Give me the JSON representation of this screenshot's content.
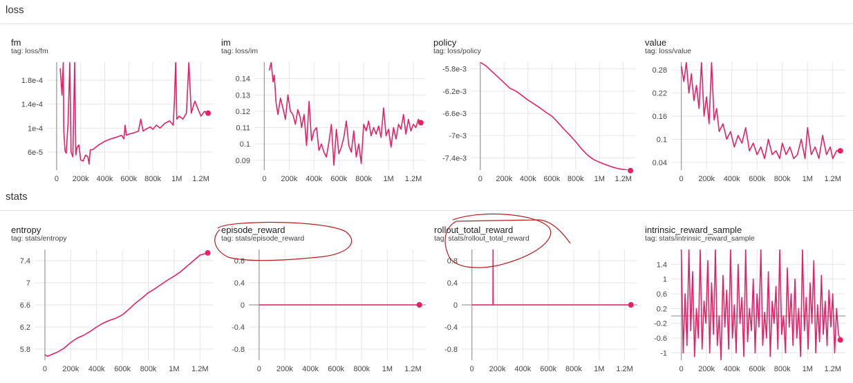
{
  "sections": [
    {
      "title": "loss"
    },
    {
      "title": "stats"
    }
  ],
  "theme": {
    "line_color": "#e91e63",
    "grid_color": "#e6e6e6",
    "axis_color": "#9e9e9e",
    "annotation_color": "#b71c1c"
  },
  "chart_data": [
    {
      "type": "line",
      "title": "fm",
      "tag": "tag: loss/fm",
      "xlim": [
        -80000,
        1300000
      ],
      "ylim": [
        3e-05,
        0.00021
      ],
      "x_ticks": [
        0,
        200000,
        400000,
        600000,
        800000,
        1000000,
        1200000
      ],
      "x_tick_labels": [
        "0",
        "200k",
        "400k",
        "600k",
        "800k",
        "1M",
        "1.2M"
      ],
      "y_ticks": [
        6e-05,
        0.0001,
        0.00014,
        0.00018
      ],
      "y_tick_labels": [
        "6e-5",
        "1e-4",
        "1.4e-4",
        "1.8e-4"
      ],
      "x": [
        30000,
        45000,
        55000,
        60000,
        70000,
        80000,
        95000,
        110000,
        120000,
        135000,
        150000,
        160000,
        170000,
        185000,
        200000,
        220000,
        240000,
        260000,
        270000,
        280000,
        300000,
        350000,
        400000,
        450000,
        500000,
        540000,
        560000,
        570000,
        580000,
        600000,
        640000,
        680000,
        700000,
        720000,
        740000,
        760000,
        780000,
        800000,
        830000,
        860000,
        900000,
        940000,
        970000,
        980000,
        990000,
        1000000,
        1020000,
        1050000,
        1080000,
        1100000,
        1120000,
        1150000,
        1180000,
        1200000,
        1230000,
        1260000
      ],
      "values": [
        0.0002,
        0.000155,
        0.00021,
        9.5e-05,
        6.2e-05,
        5.8e-05,
        0.000108,
        0.00021,
        6e-05,
        5.2e-05,
        0.00021,
        5.5e-05,
        6.8e-05,
        7.2e-05,
        4.7e-05,
        4.5e-05,
        5.5e-05,
        5.2e-05,
        4e-05,
        6.4e-05,
        6.4e-05,
        7.2e-05,
        7.8e-05,
        8.2e-05,
        8.5e-05,
        8.8e-05,
        8.2e-05,
        0.000105,
        8.8e-05,
        9e-05,
        9.2e-05,
        9.5e-05,
        0.000115,
        9.5e-05,
        9.8e-05,
        0.0001,
        0.000102,
        9.8e-05,
        0.000105,
        0.0001,
        0.000108,
        0.000112,
        0.000105,
        0.000145,
        0.00021,
        0.000115,
        0.00012,
        0.000115,
        0.000125,
        0.00021,
        0.000125,
        0.000145,
        0.00013,
        0.00012,
        0.000128,
        0.000125
      ]
    },
    {
      "type": "line",
      "title": "im",
      "tag": "tag: loss/im",
      "xlim": [
        -80000,
        1300000
      ],
      "ylim": [
        0.084,
        0.15
      ],
      "x_ticks": [
        0,
        200000,
        400000,
        600000,
        800000,
        1000000,
        1200000
      ],
      "x_tick_labels": [
        "0",
        "200k",
        "400k",
        "600k",
        "800k",
        "1M",
        "1.2M"
      ],
      "y_ticks": [
        0.09,
        0.1,
        0.11,
        0.12,
        0.13,
        0.14
      ],
      "y_tick_labels": [
        "0.09",
        "0.1",
        "0.11",
        "0.12",
        "0.13",
        "0.14"
      ],
      "x": [
        40000,
        55000,
        70000,
        80000,
        95000,
        110000,
        130000,
        150000,
        170000,
        190000,
        210000,
        230000,
        250000,
        270000,
        290000,
        300000,
        320000,
        340000,
        360000,
        380000,
        400000,
        420000,
        440000,
        460000,
        480000,
        500000,
        520000,
        540000,
        560000,
        580000,
        600000,
        620000,
        640000,
        660000,
        680000,
        700000,
        720000,
        740000,
        760000,
        780000,
        800000,
        820000,
        840000,
        860000,
        880000,
        900000,
        920000,
        940000,
        960000,
        980000,
        1000000,
        1020000,
        1040000,
        1060000,
        1080000,
        1100000,
        1120000,
        1140000,
        1160000,
        1180000,
        1200000,
        1220000,
        1240000,
        1260000
      ],
      "values": [
        0.145,
        0.15,
        0.138,
        0.142,
        0.125,
        0.118,
        0.128,
        0.122,
        0.115,
        0.13,
        0.12,
        0.118,
        0.112,
        0.121,
        0.116,
        0.11,
        0.118,
        0.099,
        0.126,
        0.102,
        0.108,
        0.11,
        0.096,
        0.1,
        0.095,
        0.092,
        0.101,
        0.112,
        0.087,
        0.109,
        0.094,
        0.098,
        0.104,
        0.114,
        0.099,
        0.095,
        0.108,
        0.092,
        0.1,
        0.088,
        0.112,
        0.108,
        0.114,
        0.105,
        0.11,
        0.106,
        0.111,
        0.104,
        0.122,
        0.105,
        0.109,
        0.098,
        0.11,
        0.103,
        0.112,
        0.109,
        0.118,
        0.106,
        0.115,
        0.108,
        0.112,
        0.11,
        0.115,
        0.113
      ]
    },
    {
      "type": "line",
      "title": "policy",
      "tag": "tag: loss/policy",
      "xlim": [
        -80000,
        1300000
      ],
      "ylim": [
        -0.00762,
        -0.00568
      ],
      "x_ticks": [
        0,
        200000,
        400000,
        600000,
        800000,
        1000000,
        1200000
      ],
      "x_tick_labels": [
        "0",
        "200k",
        "400k",
        "600k",
        "800k",
        "1M",
        "1.2M"
      ],
      "y_ticks": [
        -0.0058,
        -0.0062,
        -0.0066,
        -0.007,
        -0.0074
      ],
      "y_tick_labels": [
        "-5.8e-3",
        "-6.2e-3",
        "-6.6e-3",
        "-7e-3",
        "-7.4e-3"
      ],
      "x": [
        0,
        50000,
        100000,
        150000,
        200000,
        250000,
        300000,
        350000,
        400000,
        450000,
        500000,
        550000,
        600000,
        650000,
        700000,
        750000,
        800000,
        850000,
        900000,
        950000,
        1000000,
        1050000,
        1100000,
        1150000,
        1200000,
        1260000
      ],
      "values": [
        -0.00568,
        -0.00575,
        -0.00585,
        -0.00595,
        -0.00605,
        -0.00615,
        -0.0062,
        -0.00628,
        -0.00636,
        -0.00643,
        -0.0065,
        -0.00658,
        -0.00665,
        -0.00676,
        -0.00688,
        -0.00699,
        -0.00711,
        -0.00724,
        -0.00735,
        -0.00743,
        -0.00748,
        -0.00752,
        -0.00756,
        -0.00759,
        -0.00761,
        -0.00763
      ]
    },
    {
      "type": "line",
      "title": "value",
      "tag": "tag: loss/value",
      "xlim": [
        -80000,
        1300000
      ],
      "ylim": [
        0.02,
        0.3
      ],
      "x_ticks": [
        0,
        200000,
        400000,
        600000,
        800000,
        1000000,
        1200000
      ],
      "x_tick_labels": [
        "0",
        "200k",
        "400k",
        "600k",
        "800k",
        "1M",
        "1.2M"
      ],
      "y_ticks": [
        0.04,
        0.1,
        0.16,
        0.22,
        0.28
      ],
      "y_tick_labels": [
        "0.04",
        "0.1",
        "0.16",
        "0.22",
        "0.28"
      ],
      "x": [
        0,
        20000,
        40000,
        60000,
        80000,
        100000,
        120000,
        140000,
        160000,
        180000,
        200000,
        220000,
        240000,
        260000,
        280000,
        300000,
        330000,
        360000,
        390000,
        420000,
        450000,
        480000,
        510000,
        540000,
        570000,
        600000,
        630000,
        660000,
        690000,
        720000,
        750000,
        780000,
        800000,
        830000,
        860000,
        890000,
        920000,
        950000,
        980000,
        1000000,
        1030000,
        1060000,
        1090000,
        1120000,
        1150000,
        1180000,
        1200000,
        1230000,
        1260000
      ],
      "values": [
        0.29,
        0.25,
        0.3,
        0.22,
        0.27,
        0.2,
        0.24,
        0.18,
        0.3,
        0.16,
        0.21,
        0.14,
        0.3,
        0.15,
        0.18,
        0.12,
        0.14,
        0.1,
        0.12,
        0.08,
        0.11,
        0.09,
        0.13,
        0.07,
        0.09,
        0.06,
        0.08,
        0.05,
        0.1,
        0.06,
        0.07,
        0.05,
        0.09,
        0.06,
        0.08,
        0.05,
        0.06,
        0.1,
        0.05,
        0.13,
        0.06,
        0.08,
        0.05,
        0.11,
        0.06,
        0.08,
        0.05,
        0.07,
        0.07
      ]
    },
    {
      "type": "line",
      "title": "entropy",
      "tag": "tag: stats/entropy",
      "xlim": [
        -80000,
        1300000
      ],
      "ylim": [
        5.6,
        7.6
      ],
      "x_ticks": [
        0,
        200000,
        400000,
        600000,
        800000,
        1000000,
        1200000
      ],
      "x_tick_labels": [
        "0",
        "200k",
        "400k",
        "600k",
        "800k",
        "1M",
        "1.2M"
      ],
      "y_ticks": [
        5.8,
        6.2,
        6.6,
        7,
        7.4
      ],
      "y_tick_labels": [
        "5.8",
        "6.2",
        "6.6",
        "7",
        "7.4"
      ],
      "x": [
        0,
        20000,
        50000,
        100000,
        150000,
        200000,
        250000,
        300000,
        350000,
        400000,
        450000,
        500000,
        550000,
        600000,
        650000,
        700000,
        750000,
        800000,
        850000,
        900000,
        950000,
        1000000,
        1050000,
        1100000,
        1150000,
        1200000,
        1260000
      ],
      "values": [
        5.7,
        5.67,
        5.7,
        5.75,
        5.82,
        5.92,
        6.0,
        6.05,
        6.12,
        6.2,
        6.27,
        6.32,
        6.36,
        6.42,
        6.52,
        6.63,
        6.72,
        6.82,
        6.89,
        6.97,
        7.05,
        7.12,
        7.2,
        7.3,
        7.4,
        7.5,
        7.54
      ]
    },
    {
      "type": "line",
      "title": "episode_reward",
      "tag": "tag: stats/episode_reward",
      "xlim": [
        -80000,
        1300000
      ],
      "ylim": [
        -1.0,
        1.0
      ],
      "x_ticks": [
        0,
        200000,
        400000,
        600000,
        800000,
        1000000,
        1200000
      ],
      "x_tick_labels": [
        "0",
        "200k",
        "400k",
        "600k",
        "800k",
        "1M",
        "1.2M"
      ],
      "y_ticks": [
        -0.8,
        -0.4,
        0,
        0.4,
        0.8
      ],
      "y_tick_labels": [
        "-0.8",
        "-0.4",
        "0",
        "0.4",
        "0.8"
      ],
      "x": [
        0,
        1250000
      ],
      "values": [
        0,
        0
      ]
    },
    {
      "type": "line",
      "title": "rollout_total_reward",
      "tag": "tag: stats/rollout_total_reward",
      "xlim": [
        -80000,
        1300000
      ],
      "ylim": [
        -1.0,
        1.0
      ],
      "x_ticks": [
        0,
        200000,
        400000,
        600000,
        800000,
        1000000,
        1200000
      ],
      "x_tick_labels": [
        "0",
        "200k",
        "400k",
        "600k",
        "800k",
        "1M",
        "1.2M"
      ],
      "y_ticks": [
        -0.8,
        -0.4,
        0,
        0.4,
        0.8
      ],
      "y_tick_labels": [
        "-0.8",
        "-0.4",
        "0",
        "0.4",
        "0.8"
      ],
      "x": [
        0,
        165000,
        166000,
        168000,
        1250000
      ],
      "values": [
        0,
        0,
        1.0,
        0,
        0
      ]
    },
    {
      "type": "line",
      "title": "intrinsic_reward_sample",
      "tag": "tag: stats/intrinsic_reward_sample",
      "xlim": [
        -80000,
        1300000
      ],
      "ylim": [
        -1.2,
        1.8
      ],
      "x_ticks": [
        0,
        200000,
        400000,
        600000,
        800000,
        1000000,
        1200000
      ],
      "x_tick_labels": [
        "0",
        "200k",
        "400k",
        "600k",
        "800k",
        "1M",
        "1.2M"
      ],
      "y_ticks": [
        -1,
        -0.6,
        -0.2,
        0.2,
        0.6,
        1,
        1.4
      ],
      "y_tick_labels": [
        "-1",
        "-0.6",
        "-0.2",
        "0.2",
        "0.6",
        "1",
        "1.4"
      ],
      "x": [
        0,
        15000,
        30000,
        45000,
        60000,
        75000,
        90000,
        105000,
        120000,
        135000,
        150000,
        165000,
        180000,
        195000,
        210000,
        225000,
        240000,
        255000,
        270000,
        285000,
        300000,
        315000,
        330000,
        345000,
        360000,
        375000,
        390000,
        405000,
        420000,
        435000,
        450000,
        465000,
        480000,
        495000,
        510000,
        525000,
        540000,
        555000,
        570000,
        585000,
        600000,
        615000,
        630000,
        645000,
        660000,
        675000,
        690000,
        705000,
        720000,
        735000,
        750000,
        765000,
        780000,
        795000,
        810000,
        825000,
        840000,
        855000,
        870000,
        885000,
        900000,
        915000,
        930000,
        945000,
        960000,
        975000,
        990000,
        1005000,
        1020000,
        1035000,
        1050000,
        1065000,
        1080000,
        1095000,
        1110000,
        1125000,
        1140000,
        1155000,
        1170000,
        1185000,
        1200000,
        1215000,
        1230000,
        1245000,
        1260000
      ],
      "values": [
        1.8,
        -1.0,
        0.6,
        -0.8,
        1.8,
        -0.4,
        1.2,
        -1.1,
        0.2,
        -0.6,
        1.8,
        -0.9,
        0.4,
        -0.2,
        1.5,
        -1.0,
        0.9,
        -0.5,
        1.8,
        -0.8,
        0.0,
        -1.2,
        1.1,
        -0.3,
        0.7,
        -0.9,
        1.8,
        -0.6,
        0.3,
        -1.0,
        1.4,
        -0.2,
        0.5,
        -1.1,
        1.8,
        -0.7,
        0.2,
        -0.4,
        1.0,
        -1.0,
        0.6,
        -0.3,
        1.8,
        -0.8,
        0.1,
        -0.6,
        1.2,
        -1.1,
        0.4,
        -0.2,
        0.8,
        -0.9,
        1.8,
        -0.5,
        0.0,
        -1.0,
        1.3,
        -0.3,
        0.6,
        -0.8,
        1.0,
        -0.6,
        0.2,
        -1.1,
        1.8,
        -0.4,
        0.5,
        -0.9,
        0.9,
        -0.2,
        1.5,
        -1.0,
        0.3,
        -0.7,
        1.1,
        -0.5,
        0.4,
        -0.8,
        0.7,
        -0.3,
        0.6,
        -1.0,
        0.2,
        -0.5,
        -0.65
      ]
    }
  ]
}
